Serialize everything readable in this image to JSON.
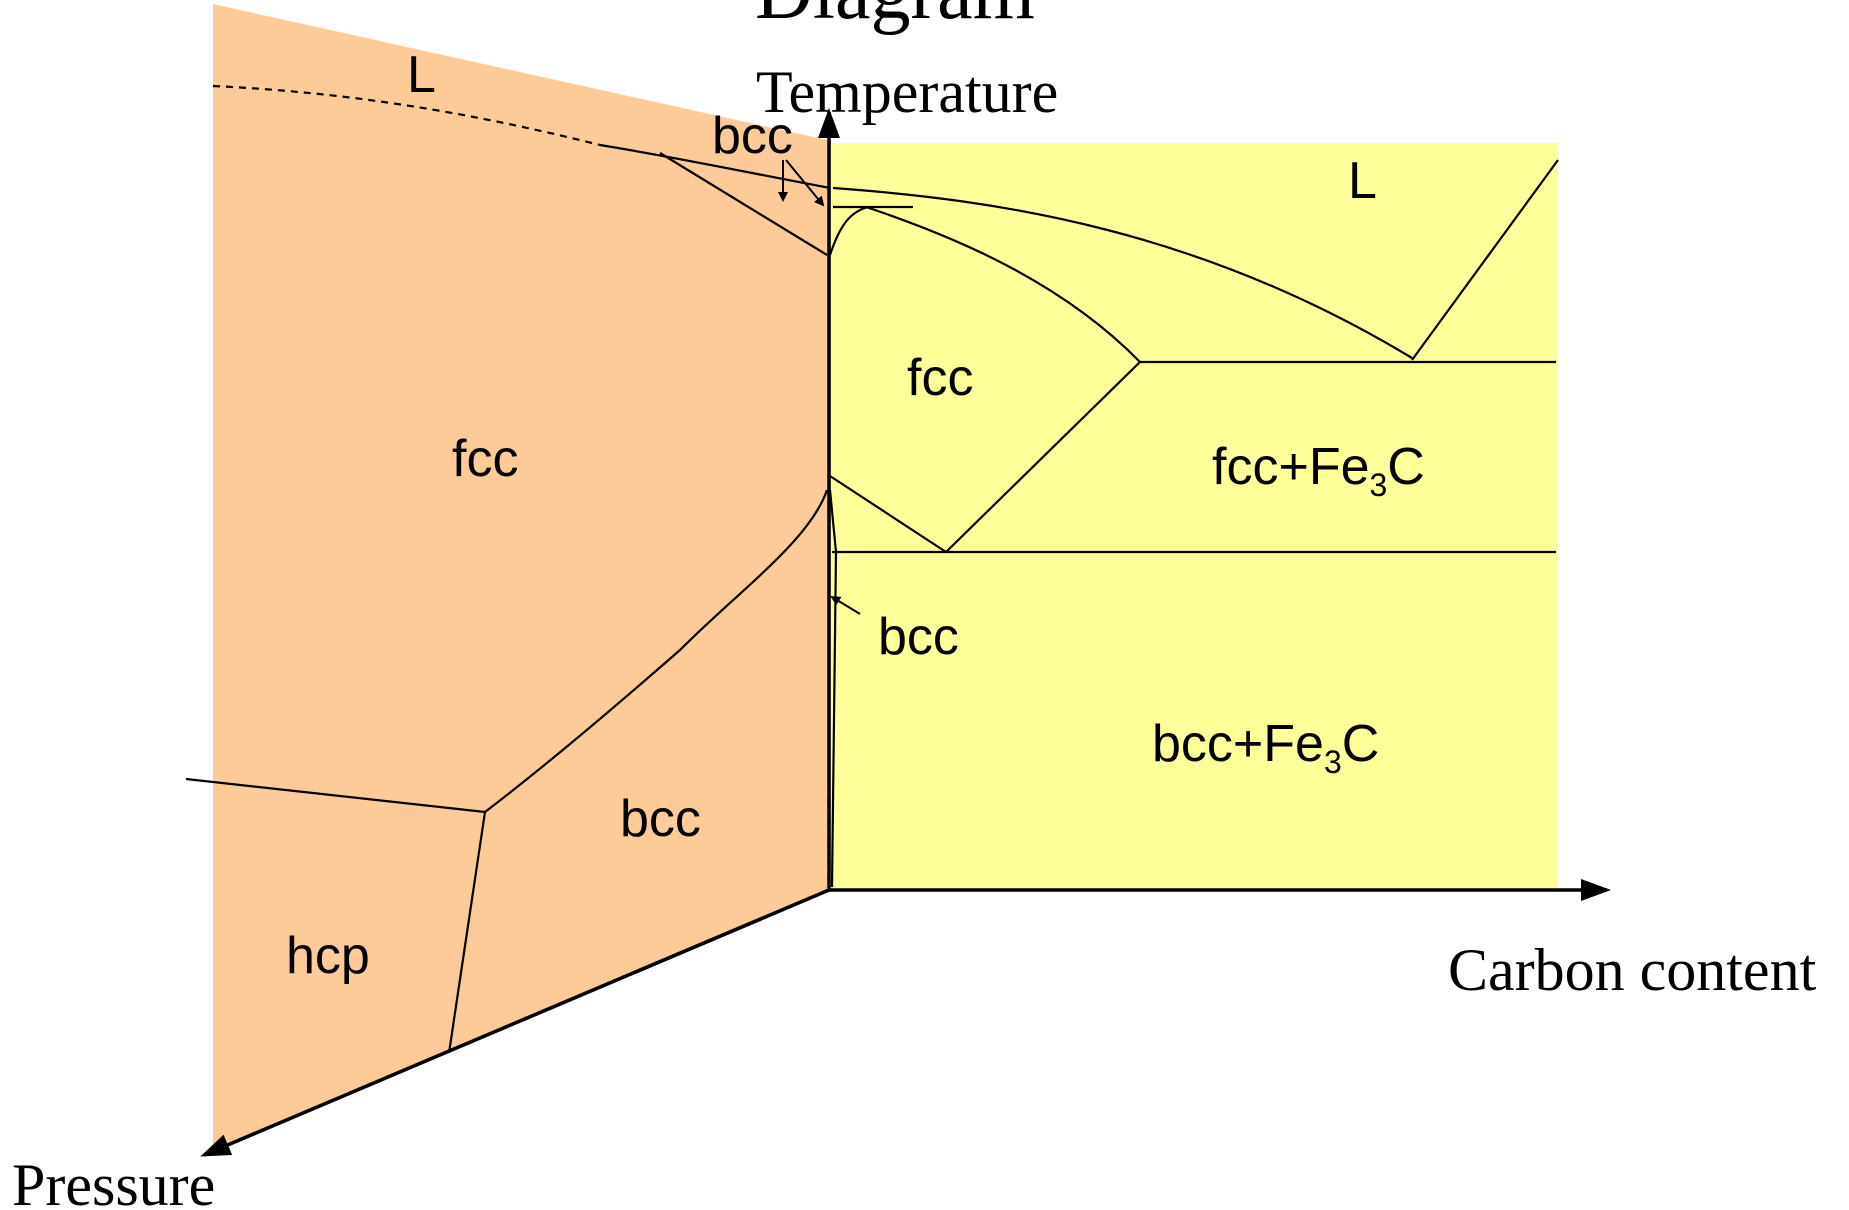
{
  "title_fragment": "Diagram",
  "axes": {
    "temperature": "Temperature",
    "carbon": "Carbon content",
    "pressure": "Pressure"
  },
  "pressure_plane_labels": {
    "liquid": "L",
    "fcc": "fcc",
    "bcc_high": "bcc",
    "bcc_low": "bcc",
    "hcp": "hcp"
  },
  "carbon_plane_labels": {
    "liquid": "L",
    "fcc": "fcc",
    "bcc": "bcc",
    "fcc_fe3c_prefix": "fcc+Fe",
    "fcc_fe3c_sub": "3",
    "fcc_fe3c_suffix": "C",
    "bcc_fe3c_prefix": "bcc+Fe",
    "bcc_fe3c_sub": "3",
    "bcc_fe3c_suffix": "C"
  },
  "colors": {
    "pressure_plane": "#FCCB98",
    "carbon_plane": "#FFFF9A",
    "lines": "#000000"
  }
}
